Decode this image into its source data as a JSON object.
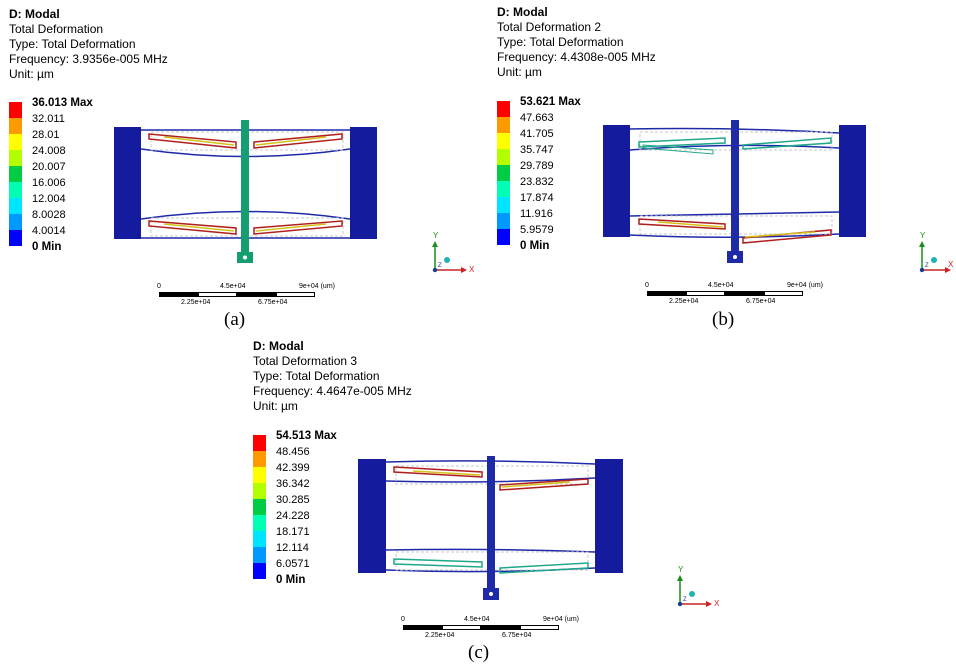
{
  "colors": {
    "legend": [
      "#ff0000",
      "#ff9900",
      "#ffff00",
      "#b3ff00",
      "#00cc44",
      "#00ffb3",
      "#00e5ff",
      "#0099ff",
      "#0000ff"
    ],
    "structure": "#1f2aa8",
    "frame_dark": "#141b9c",
    "stem_a": "#169e73",
    "beam_red": "#b01e1e",
    "beam_green": "#1fa88a",
    "axis_y": "#1a8f1a",
    "axis_x": "#cc2222",
    "axis_z": "#1a3a8c"
  },
  "panels": [
    {
      "id": "a",
      "header": [
        "D: Modal",
        "Total Deformation",
        "Type: Total Deformation",
        "Frequency: 3.9356e-005 MHz",
        "Unit: µm"
      ],
      "legend": [
        "36.013 Max",
        "32.011",
        "28.01",
        "24.008",
        "20.007",
        "16.006",
        "12.004",
        "8.0028",
        "4.0014",
        "0 Min"
      ],
      "scale_top": [
        "0",
        "4.5e+04",
        "9e+04 (um)"
      ],
      "scale_bottom": [
        "2.25e+04",
        "6.75e+04"
      ],
      "axes": {
        "y": "Y",
        "x": "X",
        "z": "Z"
      },
      "caption": "(a)"
    },
    {
      "id": "b",
      "header": [
        "D: Modal",
        "Total Deformation 2",
        "Type: Total Deformation",
        "Frequency: 4.4308e-005 MHz",
        "Unit: µm"
      ],
      "legend": [
        "53.621 Max",
        "47.663",
        "41.705",
        "35.747",
        "29.789",
        "23.832",
        "17.874",
        "11.916",
        "5.9579",
        "0 Min"
      ],
      "scale_top": [
        "0",
        "4.5e+04",
        "9e+04 (um)"
      ],
      "scale_bottom": [
        "2.25e+04",
        "6.75e+04"
      ],
      "axes": {
        "y": "Y",
        "x": "X",
        "z": "Z"
      },
      "caption": "(b)"
    },
    {
      "id": "c",
      "header": [
        "D: Modal",
        "Total Deformation 3",
        "Type: Total Deformation",
        "Frequency: 4.4647e-005 MHz",
        "Unit: µm"
      ],
      "legend": [
        "54.513 Max",
        "48.456",
        "42.399",
        "36.342",
        "30.285",
        "24.228",
        "18.171",
        "12.114",
        "6.0571",
        "0 Min"
      ],
      "scale_top": [
        "0",
        "4.5e+04",
        "9e+04 (um)"
      ],
      "scale_bottom": [
        "2.25e+04",
        "6.75e+04"
      ],
      "axes": {
        "y": "Y",
        "x": "X",
        "z": "Z"
      },
      "caption": "(c)"
    }
  ]
}
